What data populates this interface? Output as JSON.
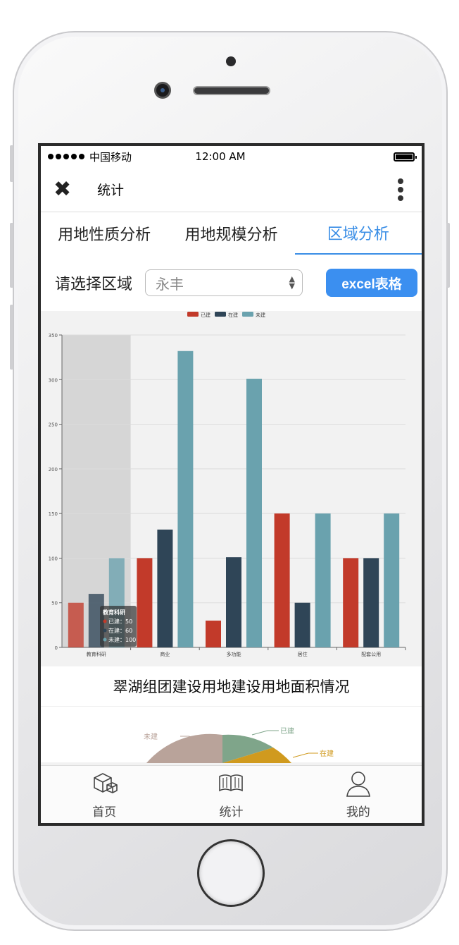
{
  "status_bar": {
    "carrier": "中国移动",
    "time": "12:00 AM"
  },
  "nav": {
    "close_icon": "close-icon",
    "title": "统计",
    "more_icon": "more-vertical-icon"
  },
  "tabs": [
    {
      "label": "用地性质分析",
      "active": false
    },
    {
      "label": "用地规模分析",
      "active": false
    },
    {
      "label": "区域分析",
      "active": true
    }
  ],
  "filter": {
    "label": "请选择区域",
    "selected": "永丰",
    "excel_button": "excel表格"
  },
  "chart_data": {
    "type": "bar",
    "categories": [
      "教育科研",
      "商业",
      "多功能",
      "居住",
      "配套公用"
    ],
    "series": [
      {
        "name": "已建",
        "color": "#c23a2a",
        "values": [
          50,
          100,
          30,
          150,
          100
        ]
      },
      {
        "name": "在建",
        "color": "#2f4557",
        "values": [
          60,
          132,
          101,
          50,
          100
        ]
      },
      {
        "name": "未建",
        "color": "#6aa2ae",
        "values": [
          100,
          332,
          301,
          150,
          150
        ]
      }
    ],
    "ylim": [
      0,
      350
    ],
    "yticks": [
      0,
      50,
      100,
      150,
      200,
      250,
      300,
      350
    ],
    "legend": "top-center",
    "grid": true,
    "tooltip": {
      "title": "教育科研",
      "lines": [
        "已建：50",
        "在建：60",
        "未建：100"
      ]
    }
  },
  "section_title": "翠湖组团建设用地建设用地面积情况",
  "pie_labels": [
    "未建",
    "已建",
    "在建"
  ],
  "tabbar": [
    {
      "label": "首页",
      "icon": "box-icon"
    },
    {
      "label": "统计",
      "icon": "book-icon"
    },
    {
      "label": "我的",
      "icon": "user-icon"
    }
  ]
}
